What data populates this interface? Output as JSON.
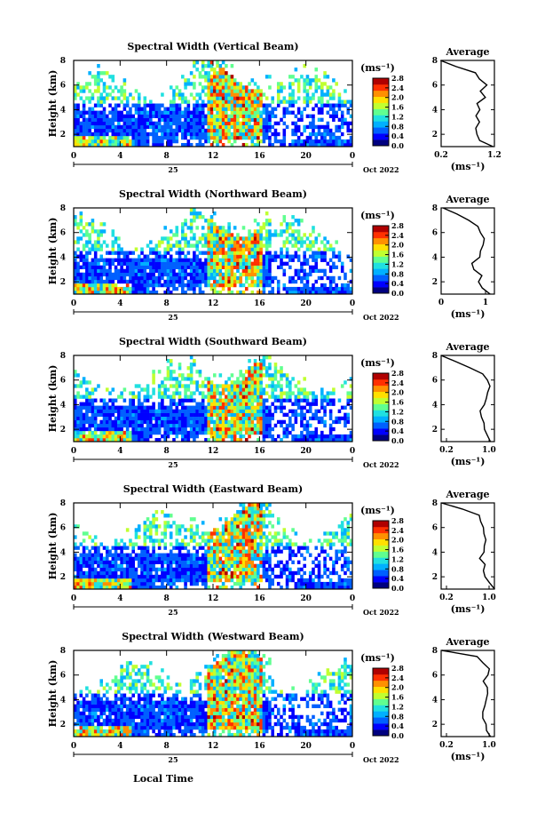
{
  "colorbar": {
    "unit_label": "(ms⁻¹)",
    "ticks": [
      "2.8",
      "2.4",
      "2.0",
      "1.6",
      "1.2",
      "0.8",
      "0.4",
      "0.0"
    ],
    "range": [
      0.0,
      2.8
    ],
    "colors": [
      "#000080",
      "#0000ff",
      "#0060ff",
      "#00b0ff",
      "#20e0e0",
      "#60ff90",
      "#c0ff30",
      "#ffe000",
      "#ff9000",
      "#ff3000",
      "#b00000"
    ]
  },
  "x_axis": {
    "ticks": [
      "0",
      "4",
      "8",
      "12",
      "16",
      "20",
      "0"
    ],
    "range": [
      0,
      24
    ],
    "day_label": "25",
    "month_label": "Oct 2022",
    "bottom_label": "Local Time"
  },
  "y_axis": {
    "label": "Height (km)",
    "ticks": [
      "2",
      "4",
      "6",
      "8"
    ],
    "range": [
      1,
      8
    ]
  },
  "profile_title": "Average",
  "profile_unit_label": "(ms⁻¹)",
  "chart_data": [
    {
      "type": "heatmap",
      "title": "Spectral Width (Vertical Beam)",
      "xlabel": "",
      "ylabel": "Height (km)",
      "xlim": [
        0,
        24
      ],
      "ylim": [
        1,
        8
      ],
      "profile": {
        "title": "Average",
        "xticks": [
          "0.2",
          "1.2"
        ],
        "xlim": [
          0.2,
          1.2
        ],
        "height": [
          1.0,
          1.5,
          2.0,
          2.5,
          3.0,
          3.5,
          4.0,
          4.5,
          5.0,
          5.5,
          6.0,
          6.5,
          7.0,
          7.5,
          8.0
        ],
        "values": [
          1.2,
          0.95,
          0.9,
          0.88,
          0.95,
          0.85,
          0.9,
          0.9,
          1.0,
          0.95,
          1.05,
          0.9,
          0.85,
          0.5,
          0.2
        ]
      }
    },
    {
      "type": "heatmap",
      "title": "Spectral Width (Northward Beam)",
      "xlabel": "",
      "ylabel": "Height (km)",
      "xlim": [
        0,
        24
      ],
      "ylim": [
        1,
        8
      ],
      "profile": {
        "title": "Average",
        "xticks": [
          "0",
          "1"
        ],
        "xlim": [
          0,
          1.2
        ],
        "height": [
          1.0,
          1.5,
          2.0,
          2.5,
          3.0,
          3.5,
          4.0,
          4.5,
          5.0,
          5.5,
          6.0,
          6.5,
          7.0,
          7.5,
          8.0
        ],
        "values": [
          1.1,
          0.9,
          0.85,
          0.9,
          0.75,
          0.7,
          0.85,
          0.9,
          0.95,
          1.0,
          0.9,
          0.8,
          0.6,
          0.35,
          0.05
        ]
      }
    },
    {
      "type": "heatmap",
      "title": "Spectral Width (Southward Beam)",
      "xlabel": "",
      "ylabel": "Height (km)",
      "xlim": [
        0,
        24
      ],
      "ylim": [
        1,
        8
      ],
      "profile": {
        "title": "Average",
        "xticks": [
          "0.2",
          "1.0"
        ],
        "xlim": [
          0.1,
          1.1
        ],
        "height": [
          1.0,
          1.5,
          2.0,
          2.5,
          3.0,
          3.5,
          4.0,
          4.5,
          5.0,
          5.5,
          6.0,
          6.5,
          7.0,
          7.5,
          8.0
        ],
        "values": [
          1.05,
          0.95,
          0.9,
          0.9,
          0.85,
          0.85,
          0.9,
          0.95,
          0.95,
          1.0,
          0.95,
          0.9,
          0.65,
          0.4,
          0.1
        ]
      }
    },
    {
      "type": "heatmap",
      "title": "Spectral Width (Eastward Beam)",
      "xlabel": "",
      "ylabel": "Height (km)",
      "xlim": [
        0,
        24
      ],
      "ylim": [
        1,
        8
      ],
      "profile": {
        "title": "Average",
        "xticks": [
          "0.2",
          "1.0"
        ],
        "xlim": [
          0.1,
          1.1
        ],
        "height": [
          1.0,
          1.5,
          2.0,
          2.5,
          3.0,
          3.5,
          4.0,
          4.5,
          5.0,
          5.5,
          6.0,
          6.5,
          7.0,
          7.5,
          8.0
        ],
        "values": [
          1.1,
          1.0,
          0.95,
          0.9,
          0.9,
          0.85,
          0.9,
          0.9,
          0.95,
          0.9,
          0.9,
          0.85,
          0.8,
          0.5,
          0.1
        ]
      }
    },
    {
      "type": "heatmap",
      "title": "Spectral Width (Westward Beam)",
      "xlabel": "",
      "ylabel": "Height (km)",
      "xlim": [
        0,
        24
      ],
      "ylim": [
        1,
        8
      ],
      "profile": {
        "title": "Average",
        "xticks": [
          "0.2",
          "1.0"
        ],
        "xlim": [
          0.1,
          1.1
        ],
        "height": [
          1.0,
          1.5,
          2.0,
          2.5,
          3.0,
          3.5,
          4.0,
          4.5,
          5.0,
          5.5,
          6.0,
          6.5,
          7.0,
          7.5,
          8.0
        ],
        "values": [
          1.05,
          0.95,
          0.95,
          0.9,
          0.9,
          0.9,
          0.95,
          0.95,
          0.95,
          0.9,
          0.95,
          1.0,
          0.9,
          0.75,
          0.1
        ]
      }
    }
  ]
}
